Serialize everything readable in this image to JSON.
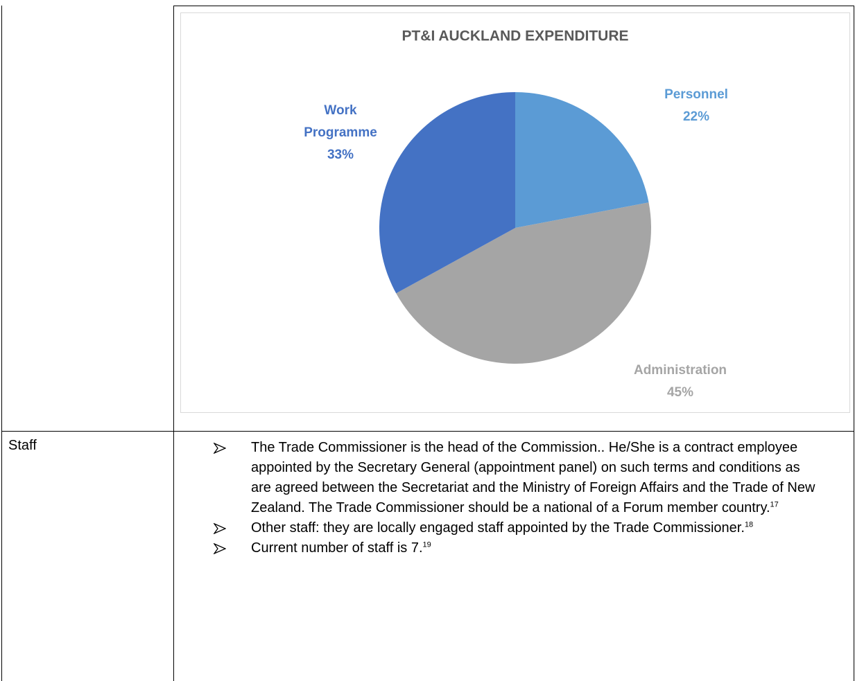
{
  "chart": {
    "type": "pie",
    "title": "PT&I AUCKLAND EXPENDITURE",
    "categories": [
      "Personnel",
      "Administration",
      "Work Programme"
    ],
    "values": [
      22,
      45,
      33
    ],
    "value_labels": [
      "22%",
      "45%",
      "33%"
    ],
    "colors": [
      "#5b9bd5",
      "#a5a5a5",
      "#4472c4"
    ]
  },
  "staff": {
    "label": "Staff",
    "items": [
      {
        "text": "The Trade Commissioner is the head of the Commission.. He/She is a contract employee appointed by the Secretary General (appointment panel) on such terms and conditions as are agreed between the Secretariat and the Ministry of Foreign Affairs and the Trade of New Zealand. The Trade Commissioner should be a national of a Forum member country.",
        "note": "17"
      },
      {
        "text": "Other staff: they are locally engaged staff appointed by the Trade Commissioner.",
        "note": "18"
      },
      {
        "text": "Current number of staff is 7.",
        "note": "19"
      }
    ]
  }
}
